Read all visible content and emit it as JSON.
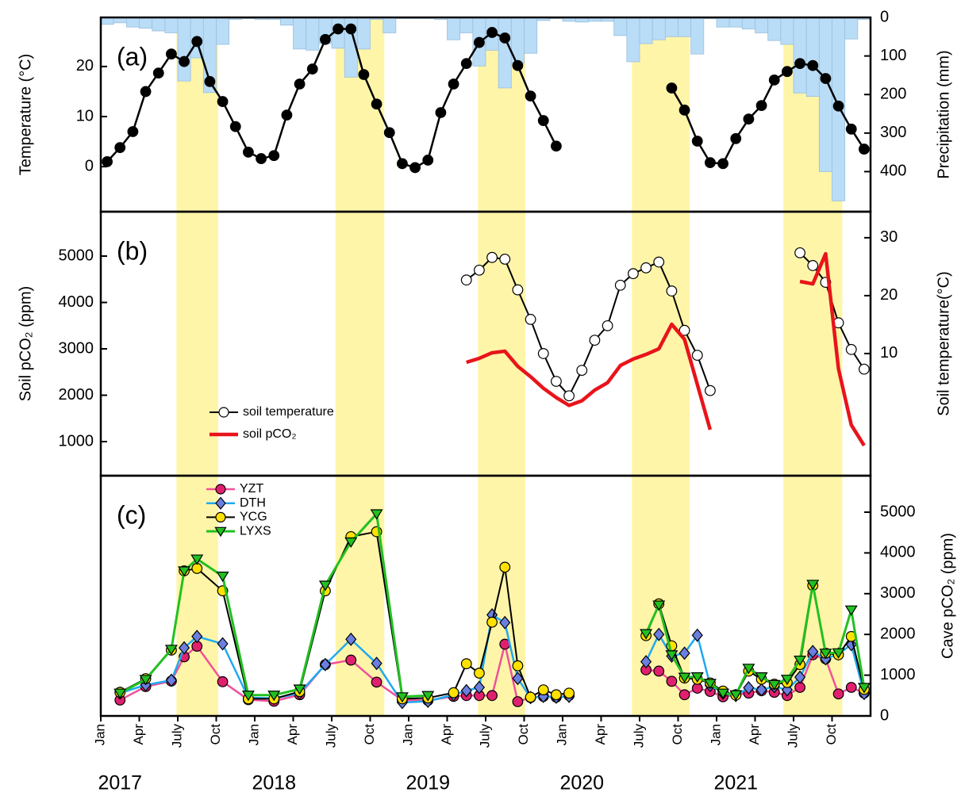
{
  "chart_data": [
    {
      "type": "combo",
      "label": "(a)",
      "ylabel": "Temperature (°C)",
      "y2label": "Precipitation (mm)",
      "xlim": [
        0,
        60
      ],
      "ylim": [
        -9,
        29.8
      ],
      "yticks": [
        0,
        10,
        20
      ],
      "y2lim": [
        504,
        0
      ],
      "y2ticks": [
        0,
        100,
        200,
        300,
        400
      ],
      "shaded_periods": [
        [
          5.9,
          9.15
        ],
        [
          18.3,
          22.1
        ],
        [
          29.4,
          33.1
        ],
        [
          41.4,
          45.9
        ],
        [
          53.2,
          57.8
        ]
      ],
      "shade_color": "#fff5a8",
      "x": [
        0.5,
        1.5,
        2.5,
        3.5,
        4.5,
        5.5,
        6.5,
        7.5,
        8.5,
        9.5,
        10.5,
        11.5,
        12.5,
        13.5,
        14.5,
        15.5,
        16.5,
        17.5,
        18.5,
        19.5,
        20.5,
        21.5,
        22.5,
        23.5,
        24.5,
        25.5,
        26.5,
        27.5,
        28.5,
        29.5,
        30.5,
        31.5,
        32.5,
        33.5,
        34.5,
        35.5,
        36.5,
        37.5,
        38.5,
        39.5,
        40.5,
        41.5,
        42.5,
        43.5,
        44.5,
        45.5,
        46.5,
        47.5,
        48.5,
        49.5,
        50.5,
        51.5,
        52.5,
        53.5,
        54.5,
        55.5,
        56.5,
        57.5,
        58.5,
        59.5
      ],
      "series": [
        {
          "type": "bar",
          "axis": "y2",
          "color": "#b9dcf7",
          "values": [
            18,
            14,
            25,
            28,
            35,
            40,
            165,
            105,
            195,
            70,
            5,
            3,
            5,
            5,
            20,
            82,
            85,
            68,
            80,
            155,
            82,
            5,
            40,
            3,
            3,
            3,
            5,
            58,
            40,
            126,
            85,
            183,
            120,
            93,
            8,
            3,
            10,
            12,
            10,
            10,
            47,
            115,
            68,
            58,
            50,
            50,
            95,
            3,
            25,
            25,
            30,
            40,
            60,
            70,
            196,
            205,
            400,
            476,
            56,
            5
          ]
        },
        {
          "type": "line",
          "axis": "y",
          "color": "#000000",
          "marker": "circle",
          "marker_color": "#000000",
          "line_width": 2.5,
          "values": [
            1,
            3.8,
            7,
            15,
            18.7,
            22.5,
            21,
            25,
            17,
            13,
            8,
            2.9,
            1.6,
            2.2,
            10.3,
            16.5,
            19.5,
            25.4,
            27.5,
            27.5,
            18.4,
            12.5,
            6.8,
            0.6,
            -0.2,
            1.3,
            10.8,
            16.5,
            20.6,
            24.8,
            26.8,
            25.7,
            20.2,
            14.1,
            9.2,
            4.1,
            null,
            null,
            null,
            null,
            null,
            null,
            null,
            null,
            15.7,
            11.3,
            5.1,
            0.8,
            0.6,
            5.6,
            9.5,
            12.2,
            17.3,
            19,
            20.6,
            20.2,
            17.6,
            12.1,
            7.5,
            3.5
          ]
        }
      ]
    },
    {
      "type": "line",
      "label": "(b)",
      "ylabel": "Soil pCO₂ (ppm)",
      "y2label": "Soil temperature(°C)",
      "xlim": [
        0,
        60
      ],
      "ylim": [
        265,
        5957
      ],
      "yticks": [
        1000,
        2000,
        3000,
        4000,
        5000
      ],
      "y2lim": [
        -11.1,
        34.5
      ],
      "y2ticks": [
        10,
        20,
        30
      ],
      "legend": "lower left",
      "x": [
        0.5,
        1.5,
        2.5,
        3.5,
        4.5,
        5.5,
        6.5,
        7.5,
        8.5,
        9.5,
        10.5,
        11.5,
        12.5,
        13.5,
        14.5,
        15.5,
        16.5,
        17.5,
        18.5,
        19.5,
        20.5,
        21.5,
        22.5,
        23.5,
        24.5,
        25.5,
        26.5,
        27.5,
        28.5,
        29.5,
        30.5,
        31.5,
        32.5,
        33.5,
        34.5,
        35.5,
        36.5,
        37.5,
        38.5,
        39.5,
        40.5,
        41.5,
        42.5,
        43.5,
        44.5,
        45.5,
        46.5,
        47.5,
        48.5,
        49.5,
        50.5,
        51.5,
        52.5,
        53.5,
        54.5,
        55.5,
        56.5,
        57.5,
        58.5,
        59.5
      ],
      "series": [
        {
          "name": "soil temperature",
          "type": "line",
          "axis": "y2",
          "color": "#000000",
          "marker": "circle",
          "marker_color": "#ffffff",
          "line_width": 2,
          "values": [
            null,
            null,
            null,
            null,
            null,
            null,
            null,
            null,
            null,
            null,
            null,
            null,
            null,
            null,
            null,
            null,
            null,
            null,
            null,
            null,
            null,
            null,
            null,
            null,
            null,
            null,
            null,
            null,
            22.7,
            24.4,
            26.6,
            26.3,
            21,
            15.9,
            10,
            5.2,
            2.7,
            7.1,
            12.3,
            14.8,
            21.8,
            23.8,
            24.8,
            25.8,
            20.8,
            14,
            9.7,
            3.6,
            null,
            null,
            null,
            null,
            null,
            null,
            27.4,
            25.2,
            22.3,
            15.3,
            10.7,
            7.3
          ]
        },
        {
          "name": "soil pCO₂",
          "type": "line",
          "axis": "y",
          "color": "#e8141a",
          "line_width": 4.5,
          "values": [
            null,
            null,
            null,
            null,
            null,
            null,
            null,
            null,
            null,
            null,
            null,
            null,
            null,
            null,
            null,
            null,
            null,
            null,
            null,
            null,
            null,
            null,
            null,
            null,
            null,
            null,
            null,
            null,
            2709,
            2795,
            2915,
            2949,
            2624,
            2400,
            2150,
            1950,
            1780,
            1880,
            2110,
            2270,
            2640,
            2780,
            2880,
            3000,
            3530,
            3205,
            2230,
            1256,
            null,
            null,
            null,
            null,
            null,
            null,
            4453,
            4400,
            5050,
            2572,
            1359,
            915
          ]
        }
      ]
    },
    {
      "type": "line",
      "label": "(c)",
      "ylabel": "Cave pCO₂ (ppm)",
      "y_side": "right",
      "xlim": [
        0,
        60
      ],
      "ylim": [
        0,
        5895
      ],
      "yticks": [
        0,
        1000,
        2000,
        3000,
        4000,
        5000
      ],
      "legend": "upper left",
      "xticks": [
        {
          "value": 0,
          "label": "Jan"
        },
        {
          "value": 3,
          "label": "Apr"
        },
        {
          "value": 6,
          "label": "July"
        },
        {
          "value": 9,
          "label": "Oct"
        },
        {
          "value": 12,
          "label": "Jan"
        },
        {
          "value": 15,
          "label": "Apr"
        },
        {
          "value": 18,
          "label": "July"
        },
        {
          "value": 21,
          "label": "Oct"
        },
        {
          "value": 24,
          "label": "Jan"
        },
        {
          "value": 27,
          "label": "Apr"
        },
        {
          "value": 30,
          "label": "July"
        },
        {
          "value": 33,
          "label": "Oct"
        },
        {
          "value": 36,
          "label": "Jan"
        },
        {
          "value": 39,
          "label": "Apr"
        },
        {
          "value": 42,
          "label": "July"
        },
        {
          "value": 45,
          "label": "Oct"
        },
        {
          "value": 48,
          "label": "Jan"
        },
        {
          "value": 51,
          "label": "Apr"
        },
        {
          "value": 54,
          "label": "July"
        },
        {
          "value": 57,
          "label": "Oct"
        }
      ],
      "year_labels": [
        {
          "value": 0,
          "label": "2017"
        },
        {
          "value": 12,
          "label": "2018"
        },
        {
          "value": 24,
          "label": "2019"
        },
        {
          "value": 36,
          "label": "2020"
        },
        {
          "value": 48,
          "label": "2021"
        }
      ],
      "x": [
        1.5,
        3.5,
        5.5,
        6.5,
        7.5,
        9.5,
        11.5,
        13.5,
        15.5,
        17.5,
        19.5,
        21.5,
        23.5,
        25.5,
        27.5,
        28.5,
        29.5,
        30.5,
        31.5,
        32.5,
        33.5,
        34.5,
        35.5,
        36.5,
        39.5,
        42.5,
        43.5,
        44.5,
        45.5,
        46.5,
        47.5,
        48.5,
        49.5,
        50.5,
        51.5,
        52.5,
        53.5,
        54.5,
        55.5,
        56.5,
        57.5,
        58.5,
        59.5
      ],
      "series": [
        {
          "name": "YZT",
          "type": "line",
          "axis": "y",
          "color": "#f0509a",
          "marker": "circle",
          "marker_color": "#e0206f",
          "line_width": 2.5,
          "values": [
            390,
            720,
            855,
            1450,
            1710,
            840,
            400,
            360,
            520,
            1260,
            1370,
            830,
            390,
            380,
            480,
            500,
            500,
            500,
            1760,
            350,
            450,
            480,
            460,
            500,
            null,
            1130,
            1100,
            850,
            520,
            680,
            600,
            470,
            520,
            560,
            620,
            580,
            500,
            700,
            1500,
            1400,
            540,
            700,
            560
          ]
        },
        {
          "name": "DTH",
          "type": "line",
          "axis": "y",
          "color": "#1fa9f0",
          "marker": "diamond",
          "marker_color": "#6a7fe0",
          "line_width": 2.5,
          "values": [
            560,
            760,
            875,
            1670,
            1950,
            1770,
            450,
            430,
            560,
            1260,
            1880,
            1290,
            330,
            360,
            520,
            620,
            700,
            2480,
            2290,
            920,
            450,
            480,
            460,
            480,
            null,
            1330,
            2000,
            1470,
            1540,
            1980,
            750,
            560,
            500,
            690,
            640,
            720,
            640,
            950,
            1580,
            1400,
            1520,
            1750,
            550
          ]
        },
        {
          "name": "YCG",
          "type": "line",
          "axis": "y",
          "color": "#000000",
          "marker": "circle",
          "marker_color": "#ffe100",
          "line_width": 2,
          "values": [
            580,
            915,
            1615,
            3560,
            3620,
            3070,
            420,
            420,
            600,
            3070,
            4400,
            4520,
            420,
            440,
            570,
            1280,
            1050,
            2300,
            3650,
            1230,
            460,
            640,
            520,
            560,
            null,
            1970,
            2750,
            1720,
            930,
            900,
            810,
            610,
            510,
            1100,
            900,
            780,
            820,
            1260,
            3200,
            1540,
            1500,
            1950,
            650
          ]
        },
        {
          "name": "LYXS",
          "type": "line",
          "axis": "y",
          "color": "#22c020",
          "marker": "triangle-down",
          "marker_color": "#22c020",
          "line_width": 3,
          "values": [
            560,
            895,
            1635,
            3560,
            3850,
            3430,
            510,
            510,
            660,
            3210,
            4270,
            4960,
            470,
            500,
            null,
            null,
            null,
            null,
            null,
            null,
            null,
            null,
            null,
            null,
            null,
            2020,
            2720,
            1500,
            950,
            960,
            800,
            560,
            520,
            1170,
            960,
            770,
            900,
            1370,
            3230,
            1540,
            1550,
            2600,
            700
          ]
        }
      ]
    }
  ]
}
